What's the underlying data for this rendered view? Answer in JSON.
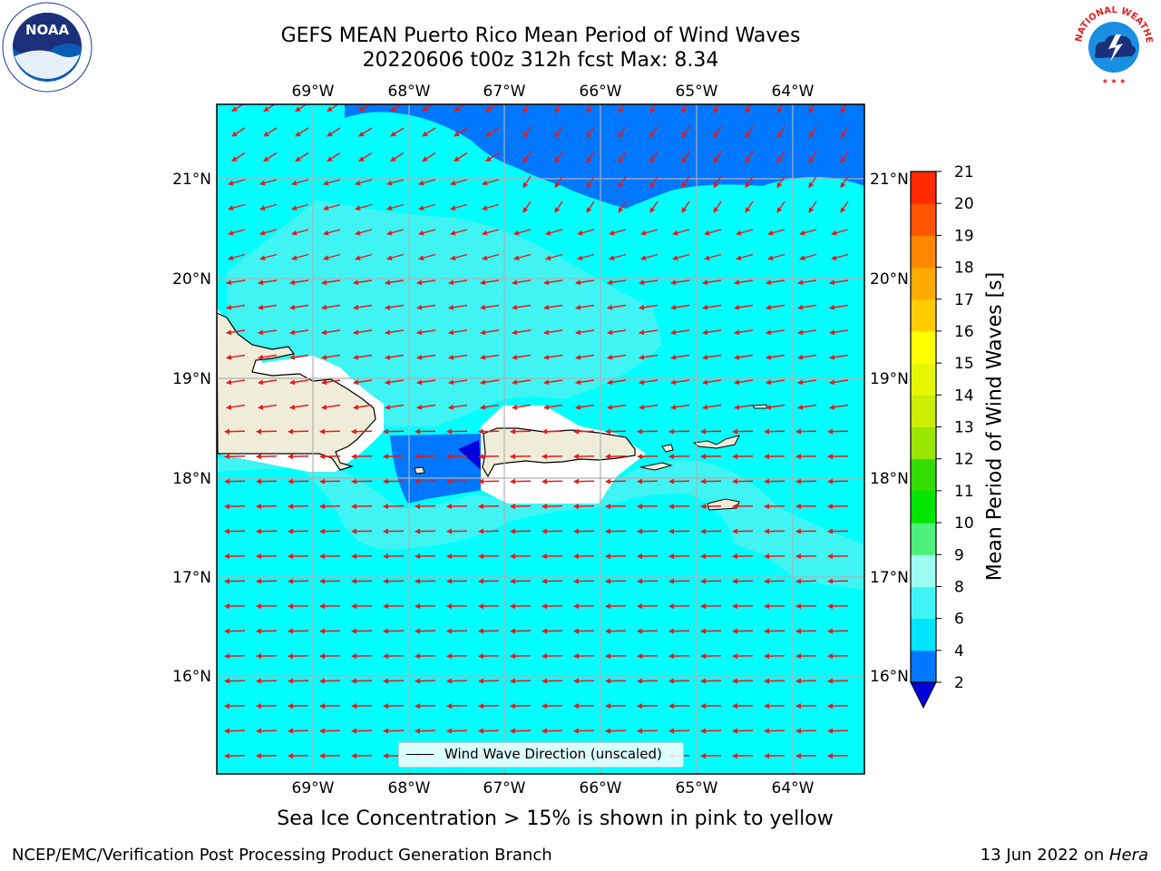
{
  "title_line1": "GEFS MEAN Puerto Rico Mean Period of Wind Waves",
  "title_line2": "20220606 t00z 312h fcst   Max: 8.34",
  "footer_left": "NCEP/EMC/Verification Post Processing Product Generation Branch",
  "footer_right_date": "13 Jun 2022 on ",
  "footer_right_machine": "Hera",
  "ice_note": "Sea Ice Concentration > 15% is shown in pink to yellow",
  "legend_label": "Wind Wave Direction (unscaled)",
  "colorbar": {
    "label": "Mean Period of Wind Waves [s]",
    "ticks": [
      "2",
      "4",
      "6",
      "8",
      "9",
      "10",
      "11",
      "12",
      "13",
      "14",
      "15",
      "16",
      "17",
      "18",
      "19",
      "20",
      "21"
    ],
    "colors": [
      "#0077ff",
      "#00e5ff",
      "#3ff4f4",
      "#9ffcf2",
      "#4df07a",
      "#00e600",
      "#33dd00",
      "#99e600",
      "#ccee00",
      "#e6f500",
      "#ffff00",
      "#ffcc00",
      "#ffaa00",
      "#ff8800",
      "#ff5500",
      "#ff2a00"
    ],
    "under_color": "#0000dd"
  },
  "lon_labels": [
    "69°W",
    "68°W",
    "67°W",
    "66°W",
    "65°W",
    "64°W"
  ],
  "lat_labels": [
    "21°N",
    "20°N",
    "19°N",
    "18°N",
    "17°N",
    "16°N"
  ],
  "colors": {
    "ocean_main": "#00ffff",
    "ocean_light": "#40f4f4",
    "ocean_dark": "#0077ff",
    "ocean_darkest": "#0000dd",
    "land": "#efedda",
    "arrow": "#e61a1a",
    "grid": "#b0b0b0"
  },
  "logos": {
    "noaa": "NOAA",
    "nws_ring": "NATIONAL WEATHER SERVICE"
  }
}
